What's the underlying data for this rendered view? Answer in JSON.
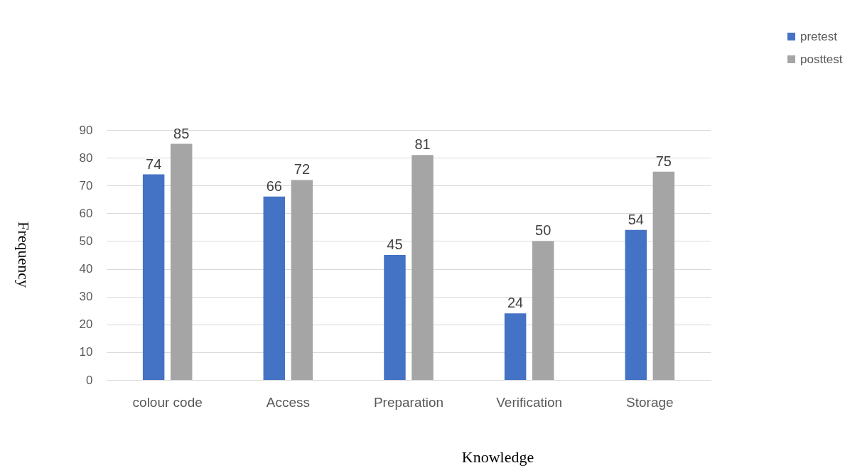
{
  "chart_data": {
    "type": "bar",
    "xlabel": "Knowledge",
    "ylabel": "Frequency",
    "categories": [
      "colour code",
      "Access",
      "Preparation",
      "Verification",
      "Storage"
    ],
    "series": [
      {
        "name": "pretest",
        "color": "#4472c4",
        "values": [
          74,
          66,
          45,
          24,
          54
        ]
      },
      {
        "name": "posttest",
        "color": "#a5a5a5",
        "values": [
          85,
          72,
          81,
          50,
          75
        ]
      }
    ],
    "ylim": [
      0,
      90
    ],
    "yticks": [
      0,
      10,
      20,
      30,
      40,
      50,
      60,
      70,
      80,
      90
    ],
    "grid": "y",
    "legend": "top right",
    "data_labels": true
  }
}
